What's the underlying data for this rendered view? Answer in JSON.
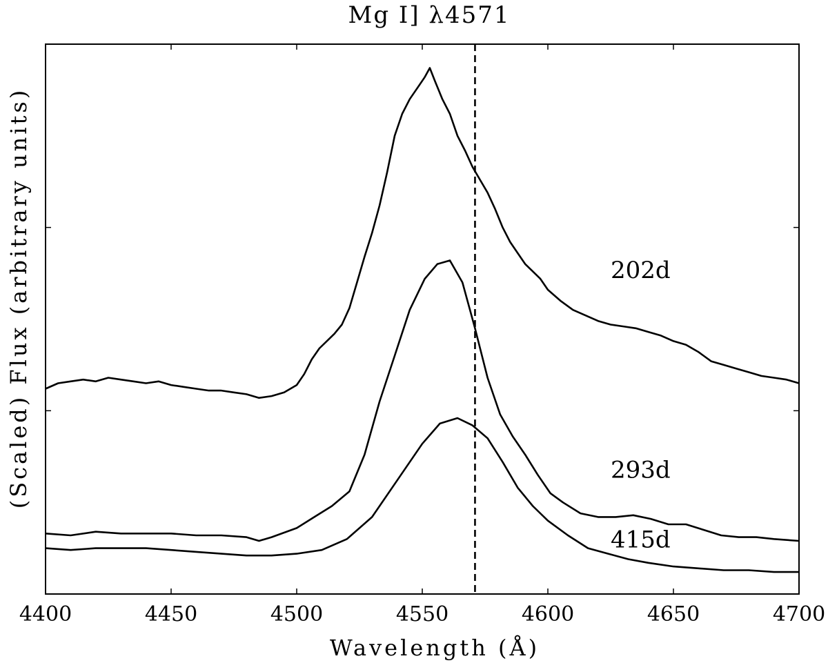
{
  "chart_data": {
    "type": "line",
    "title": "Mg I] λ4571",
    "xlabel": "Wavelength (Å)",
    "ylabel": "(Scaled) Flux (arbitrary units)",
    "xlim": [
      4400,
      4700
    ],
    "ylim": [
      0,
      3
    ],
    "xticks": [
      4400,
      4450,
      4500,
      4550,
      4600,
      4650,
      4700
    ],
    "yticks": [
      1,
      2
    ],
    "show_ytick_labels": false,
    "grid": false,
    "reference_line": {
      "x": 4571,
      "style": "dashed"
    },
    "series": [
      {
        "name": "202d",
        "label_position": [
          4625,
          1.77
        ],
        "x": [
          4400,
          4405,
          4410,
          4415,
          4420,
          4425,
          4430,
          4435,
          4440,
          4445,
          4450,
          4455,
          4460,
          4465,
          4470,
          4475,
          4480,
          4485,
          4490,
          4495,
          4500,
          4503,
          4506,
          4509,
          4512,
          4515,
          4518,
          4521,
          4524,
          4527,
          4530,
          4533,
          4536,
          4539,
          4542,
          4545,
          4548,
          4551,
          4553,
          4555,
          4558,
          4561,
          4564,
          4567,
          4570,
          4573,
          4576,
          4579,
          4582,
          4585,
          4588,
          4591,
          4594,
          4597,
          4600,
          4605,
          4610,
          4615,
          4620,
          4625,
          4630,
          4635,
          4640,
          4645,
          4650,
          4655,
          4660,
          4665,
          4670,
          4675,
          4680,
          4685,
          4690,
          4695,
          4700
        ],
        "y": [
          1.12,
          1.15,
          1.16,
          1.17,
          1.16,
          1.18,
          1.17,
          1.16,
          1.15,
          1.16,
          1.14,
          1.13,
          1.12,
          1.11,
          1.11,
          1.1,
          1.09,
          1.07,
          1.08,
          1.1,
          1.14,
          1.2,
          1.28,
          1.34,
          1.38,
          1.42,
          1.47,
          1.56,
          1.7,
          1.84,
          1.97,
          2.12,
          2.3,
          2.5,
          2.62,
          2.7,
          2.76,
          2.82,
          2.87,
          2.8,
          2.7,
          2.62,
          2.5,
          2.42,
          2.33,
          2.26,
          2.19,
          2.1,
          2.0,
          1.92,
          1.86,
          1.8,
          1.76,
          1.72,
          1.66,
          1.6,
          1.55,
          1.52,
          1.49,
          1.47,
          1.46,
          1.45,
          1.43,
          1.41,
          1.38,
          1.36,
          1.32,
          1.27,
          1.25,
          1.23,
          1.21,
          1.19,
          1.18,
          1.17,
          1.15
        ]
      },
      {
        "name": "293d",
        "label_position": [
          4625,
          0.68
        ],
        "x": [
          4400,
          4410,
          4420,
          4430,
          4440,
          4450,
          4460,
          4470,
          4480,
          4485,
          4490,
          4500,
          4507,
          4514,
          4521,
          4527,
          4533,
          4539,
          4545,
          4551,
          4556,
          4561,
          4566,
          4571,
          4576,
          4581,
          4586,
          4591,
          4596,
          4601,
          4606,
          4613,
          4620,
          4627,
          4634,
          4641,
          4648,
          4655,
          4662,
          4669,
          4676,
          4683,
          4690,
          4700
        ],
        "y": [
          0.33,
          0.32,
          0.34,
          0.33,
          0.33,
          0.33,
          0.32,
          0.32,
          0.31,
          0.29,
          0.31,
          0.36,
          0.42,
          0.48,
          0.56,
          0.76,
          1.05,
          1.3,
          1.55,
          1.72,
          1.8,
          1.82,
          1.7,
          1.45,
          1.18,
          0.98,
          0.86,
          0.76,
          0.65,
          0.55,
          0.5,
          0.44,
          0.42,
          0.42,
          0.43,
          0.41,
          0.38,
          0.38,
          0.35,
          0.32,
          0.31,
          0.31,
          0.3,
          0.29
        ]
      },
      {
        "name": "415d",
        "label_position": [
          4625,
          0.3
        ],
        "x": [
          4400,
          4410,
          4420,
          4430,
          4440,
          4450,
          4460,
          4470,
          4480,
          4490,
          4500,
          4510,
          4520,
          4530,
          4540,
          4550,
          4557,
          4564,
          4570,
          4576,
          4582,
          4588,
          4594,
          4600,
          4608,
          4616,
          4624,
          4632,
          4640,
          4650,
          4660,
          4670,
          4680,
          4690,
          4700
        ],
        "y": [
          0.25,
          0.24,
          0.25,
          0.25,
          0.25,
          0.24,
          0.23,
          0.22,
          0.21,
          0.21,
          0.22,
          0.24,
          0.3,
          0.42,
          0.62,
          0.82,
          0.93,
          0.96,
          0.92,
          0.85,
          0.72,
          0.58,
          0.48,
          0.4,
          0.32,
          0.25,
          0.22,
          0.19,
          0.17,
          0.15,
          0.14,
          0.13,
          0.13,
          0.12,
          0.12
        ]
      }
    ]
  }
}
